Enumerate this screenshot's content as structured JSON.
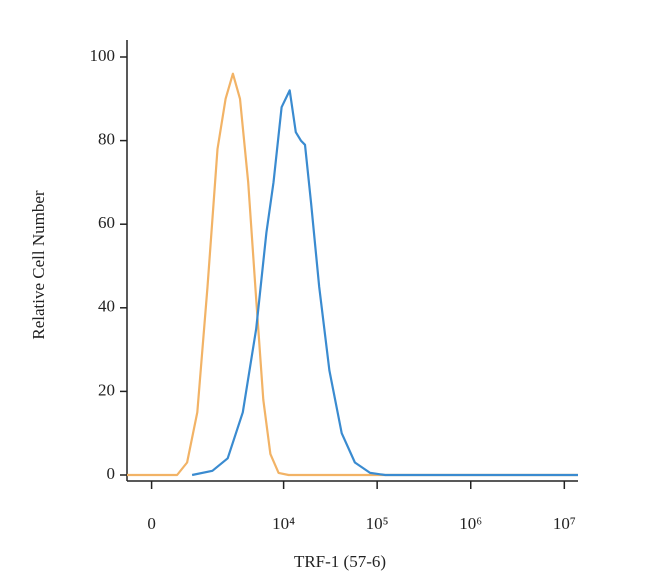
{
  "chart_data": {
    "type": "line",
    "xscale": "biexponential",
    "x_label": "TRF-1 (57-6)",
    "y_label": "Relative Cell Number",
    "xlim": [
      -500,
      14000000
    ],
    "ylim": [
      0,
      100
    ],
    "xticks": [
      0,
      {
        "value": 10000,
        "label": "10⁴"
      },
      {
        "value": 100000,
        "label": "10⁵"
      },
      {
        "value": 1000000,
        "label": "10⁶"
      },
      {
        "value": 10000000,
        "label": "10⁷"
      }
    ],
    "yticks": [
      0,
      20,
      40,
      60,
      80,
      100
    ],
    "series": [
      {
        "color": "#f2b366",
        "x": [
          -500,
          520,
          770,
          1070,
          1440,
          1890,
          2340,
          2820,
          3380,
          4150,
          5070,
          6050,
          7220,
          8830,
          11300,
          14000000
        ],
        "values": [
          0,
          0,
          3,
          15,
          45,
          78,
          90,
          96,
          90,
          70,
          42,
          18,
          5,
          0.5,
          0,
          0
        ]
      },
      {
        "color": "#3a8bd0",
        "x": [
          910,
          1650,
          2470,
          3630,
          5070,
          6530,
          7780,
          9520,
          11630,
          13500,
          15330,
          16950,
          19680,
          24040,
          30890,
          41780,
          57800,
          84000,
          122000,
          14000000
        ],
        "values": [
          0,
          1,
          4,
          15,
          35,
          58,
          70,
          88,
          92,
          82,
          80,
          79,
          65,
          45,
          25,
          10,
          3,
          0.5,
          0,
          0
        ]
      }
    ]
  }
}
